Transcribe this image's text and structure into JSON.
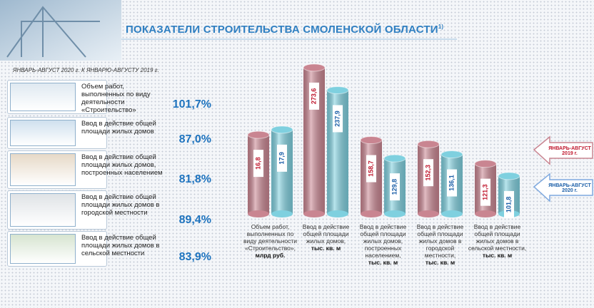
{
  "title": "ПОКАЗАТЕЛИ СТРОИТЕЛЬСТВА СМОЛЕНСКОЙ ОБЛАСТИ",
  "title_note": "1)",
  "subtitle": "ЯНВАРЬ-АВГУСТ 2020 г. К ЯНВАРЮ-АВГУСТУ 2019 г.",
  "indicators": [
    {
      "label": "Объем работ, выполненных по виду деятельности «Строительство»",
      "value": "101,7%"
    },
    {
      "label": "Ввод в действие общей площади жилых домов",
      "value": "87,0%"
    },
    {
      "label": "Ввод в действие общей площади жилых домов, построенных населением",
      "value": "81,8%"
    },
    {
      "label": "Ввод в действие общей площади жилых домов в городской местности",
      "value": "89,4%"
    },
    {
      "label": "Ввод в действие общей площади жилых домов в сельской местности",
      "value": "83,9%"
    }
  ],
  "chart_data": {
    "type": "bar",
    "categories": [
      "Объем работ, выполненных по виду деятельности «Строительство»,",
      "Ввод в действие общей площади жилых домов,",
      "Ввод в действие общей площади жилых домов, построенных населением,",
      "Ввод в действие общей площади жилых домов в городской местности,",
      "Ввод в действие общей площади жилых домов в сельской местности,"
    ],
    "units": [
      "млрд руб.",
      "тыс. кв. м",
      "тыс. кв. м",
      "тыс. кв. м",
      "тыс. кв. м"
    ],
    "series": [
      {
        "name": "ЯНВАРЬ-АВГУСТ 2019 г.",
        "color": "#c98591",
        "label_color": "#c0182e",
        "values": [
          16.8,
          273.6,
          158.7,
          152.3,
          121.3
        ],
        "value_labels": [
          "16,8",
          "273,6",
          "158,7",
          "152,3",
          "121,3"
        ]
      },
      {
        "name": "ЯНВАРЬ-АВГУСТ 2020 г.",
        "color": "#7fd0df",
        "label_color": "#1c5fa8",
        "values": [
          17.9,
          237.9,
          129.8,
          136.1,
          101.8
        ],
        "value_labels": [
          "17,9",
          "237,9",
          "129,8",
          "136,1",
          "101,8"
        ]
      }
    ]
  }
}
